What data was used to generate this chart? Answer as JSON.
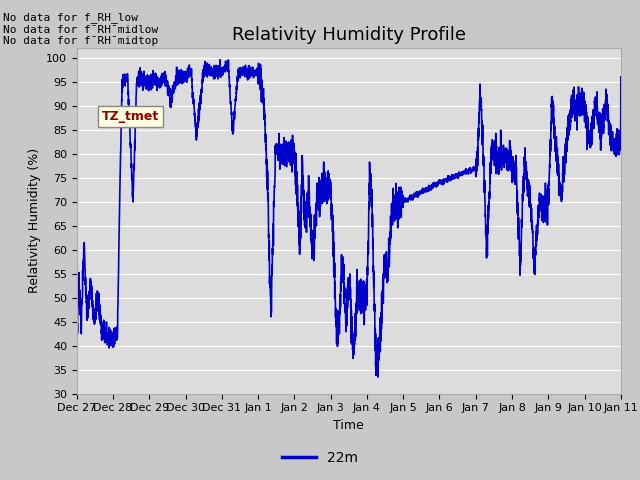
{
  "title": "Relativity Humidity Profile",
  "xlabel": "Time",
  "ylabel": "Relativity Humidity (%)",
  "ylim": [
    30,
    102
  ],
  "yticks": [
    30,
    35,
    40,
    45,
    50,
    55,
    60,
    65,
    70,
    75,
    80,
    85,
    90,
    95,
    100
  ],
  "line_color": "#0000cc",
  "line_width": 1.2,
  "legend_label": "22m",
  "fig_facecolor": "#c8c8c8",
  "ax_facecolor": "#dcdcdc",
  "grid_color": "#ffffff",
  "annotations": [
    "No data for f_RH_low",
    "No data for f¯RH¯midlow",
    "No data for f¯RH¯midtop"
  ],
  "tz_label": "TZ_tmet",
  "x_tick_labels": [
    "Dec 27",
    "Dec 28",
    "Dec 29",
    "Dec 30",
    "Dec 31",
    "Jan 1",
    "Jan 2",
    "Jan 3",
    "Jan 4",
    "Jan 5",
    "Jan 6",
    "Jan 7",
    "Jan 8",
    "Jan 9",
    "Jan 10",
    "Jan 11"
  ],
  "title_fontsize": 13,
  "axis_label_fontsize": 9,
  "tick_fontsize": 8,
  "annot_fontsize": 8
}
